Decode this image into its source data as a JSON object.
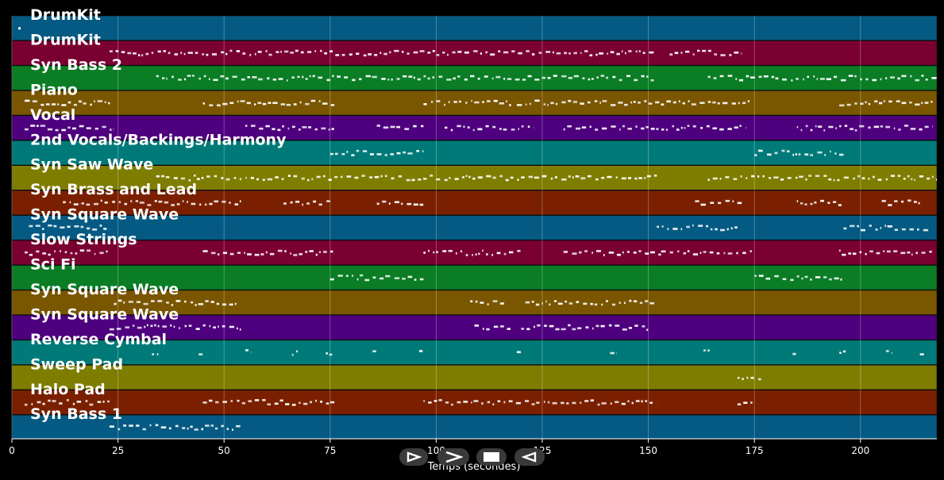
{
  "xaxis": {
    "label": "Temps (secondes)",
    "ticks": [
      0,
      25,
      50,
      75,
      100,
      125,
      150,
      175,
      200
    ],
    "range": [
      0,
      218
    ]
  },
  "tracks": [
    {
      "name": "DrumKit",
      "color": "#045a82",
      "notes": [
        [
          1.5,
          2
        ]
      ]
    },
    {
      "name": "DrumKit",
      "color": "#7a0032",
      "notes": [
        [
          23,
          152
        ],
        [
          155,
          172
        ]
      ]
    },
    {
      "name": "Syn Bass 2",
      "color": "#0a7d25",
      "notes": [
        [
          34,
          152
        ],
        [
          164,
          218
        ]
      ]
    },
    {
      "name": "Piano",
      "color": "#7a5600",
      "notes": [
        [
          3,
          24
        ],
        [
          45,
          76
        ],
        [
          97,
          118
        ],
        [
          119,
          174
        ],
        [
          195,
          217
        ]
      ]
    },
    {
      "name": "Vocal",
      "color": "#4e007e",
      "notes": [
        [
          3,
          24
        ],
        [
          55,
          76
        ],
        [
          86,
          97
        ],
        [
          102,
          123
        ],
        [
          130,
          173
        ],
        [
          185,
          217
        ]
      ]
    },
    {
      "name": "2nd Vocals/Backings/Harmony",
      "color": "#007a78",
      "notes": [
        [
          75,
          97
        ],
        [
          175,
          196
        ]
      ]
    },
    {
      "name": "Syn Saw Wave",
      "color": "#7f7d00",
      "notes": [
        [
          34,
          152
        ],
        [
          164,
          218
        ]
      ]
    },
    {
      "name": "Syn Brass and Lead",
      "color": "#7a2000",
      "notes": [
        [
          12,
          54
        ],
        [
          64,
          75
        ],
        [
          86,
          97
        ],
        [
          161,
          172
        ],
        [
          185,
          196
        ],
        [
          205,
          214
        ]
      ]
    },
    {
      "name": "Syn Square Wave",
      "color": "#045a82",
      "notes": [
        [
          4,
          23
        ],
        [
          152,
          171
        ],
        [
          196,
          216
        ]
      ]
    },
    {
      "name": "Slow Strings",
      "color": "#7a0032",
      "notes": [
        [
          3,
          23
        ],
        [
          45,
          76
        ],
        [
          97,
          120
        ],
        [
          130,
          153
        ],
        [
          153,
          175
        ],
        [
          195,
          217
        ]
      ]
    },
    {
      "name": "Sci Fi",
      "color": "#0a7d25",
      "notes": [
        [
          75,
          97
        ],
        [
          175,
          196
        ]
      ]
    },
    {
      "name": "Syn Square Wave",
      "color": "#7a5600",
      "notes": [
        [
          24,
          53
        ],
        [
          108,
          116
        ],
        [
          121,
          152
        ]
      ]
    },
    {
      "name": "Syn Square Wave",
      "color": "#4e007e",
      "notes": [
        [
          23,
          54
        ],
        [
          109,
          118
        ],
        [
          120,
          150
        ]
      ]
    },
    {
      "name": "Reverse Cymbal",
      "color": "#007a78",
      "notes": [
        [
          33,
          34.5
        ],
        [
          44,
          45.5
        ],
        [
          55,
          56.5
        ],
        [
          66,
          67.5
        ],
        [
          74,
          75.5
        ],
        [
          85,
          86.5
        ],
        [
          96,
          97.5
        ],
        [
          119,
          120.5
        ],
        [
          141,
          142.5
        ],
        [
          163,
          164.5
        ],
        [
          184,
          185.5
        ],
        [
          195,
          196.5
        ],
        [
          206,
          207.5
        ],
        [
          214,
          215.5
        ]
      ]
    },
    {
      "name": "Sweep Pad",
      "color": "#7f7d00",
      "notes": [
        [
          171,
          177
        ]
      ]
    },
    {
      "name": "Halo Pad",
      "color": "#7a2000",
      "notes": [
        [
          3,
          23
        ],
        [
          45,
          76
        ],
        [
          97,
          152
        ],
        [
          171,
          175
        ]
      ]
    },
    {
      "name": "Syn Bass 1",
      "color": "#045a82",
      "notes": [
        [
          23,
          54
        ]
      ]
    }
  ],
  "controls": [
    {
      "id": "rewind",
      "icon": "rewind-icon"
    },
    {
      "id": "play",
      "icon": "play-icon"
    },
    {
      "id": "stop",
      "icon": "stop-icon"
    },
    {
      "id": "forward",
      "icon": "forward-icon"
    }
  ]
}
